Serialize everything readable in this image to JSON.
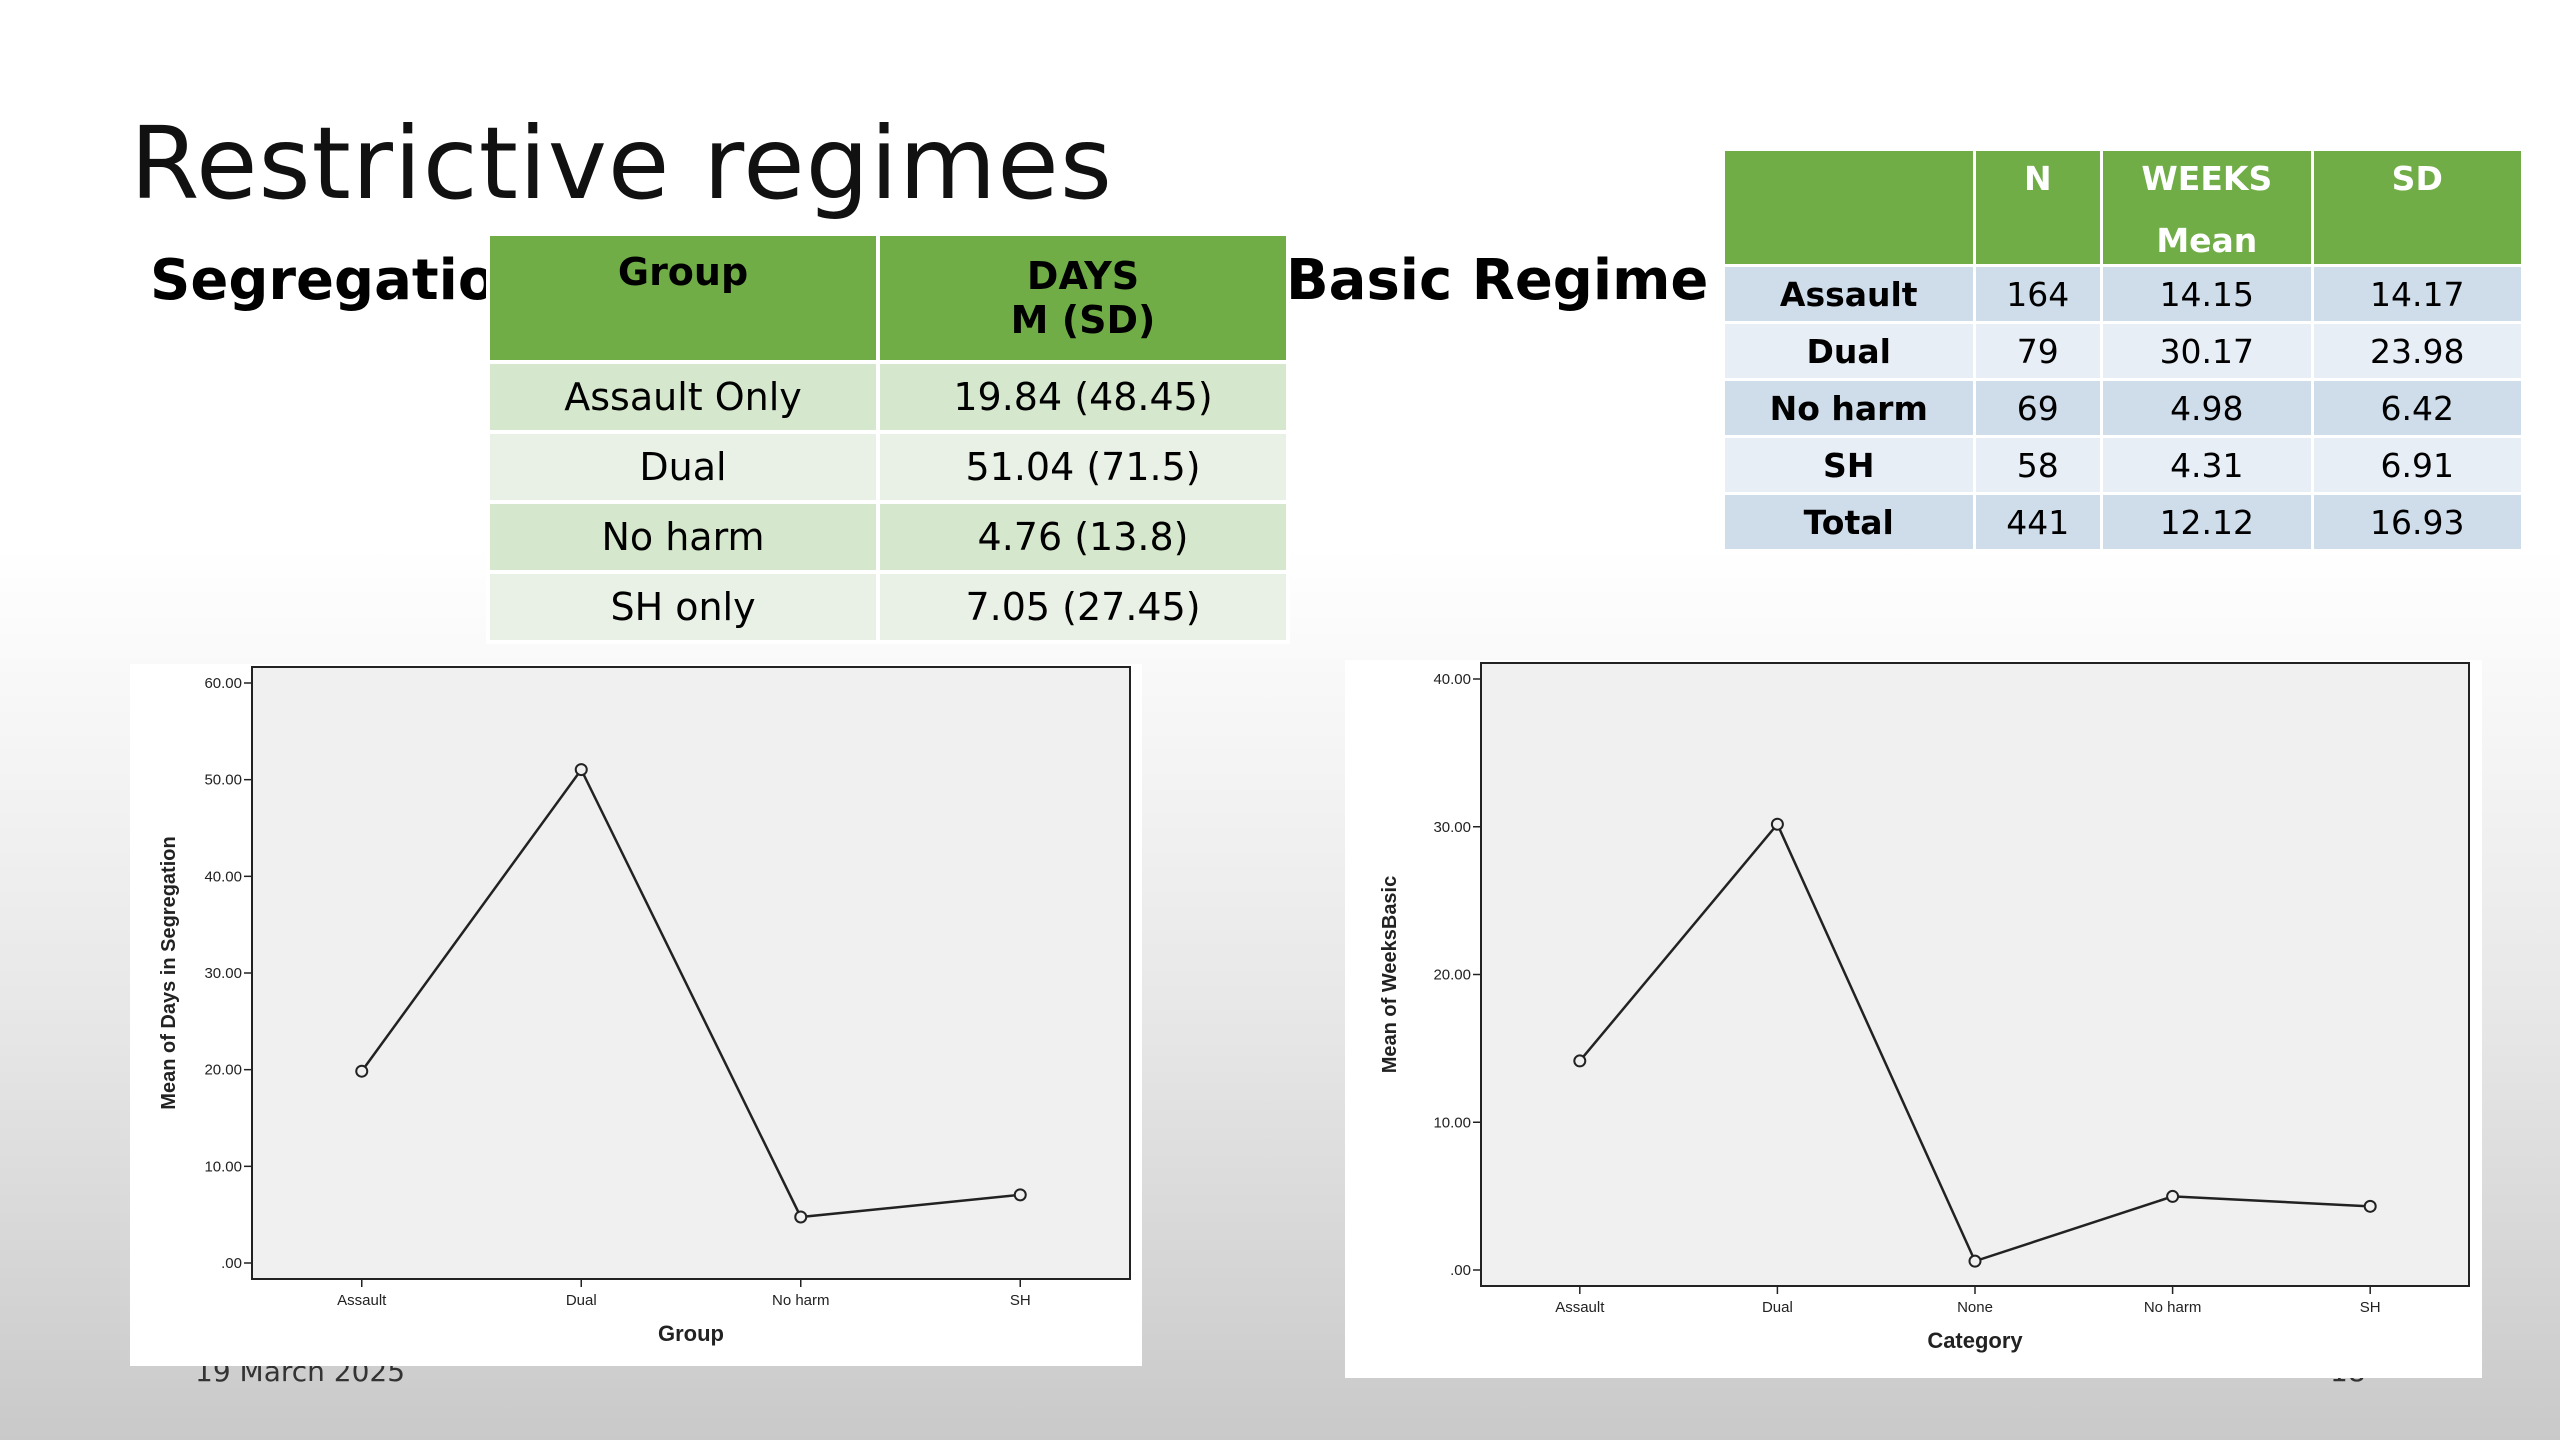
{
  "slide": {
    "title": "Restrictive regimes",
    "segregation_label": "Segregation",
    "basic_label": "Basic Regime",
    "footer_date": "19 March 2025",
    "footer_page": "18"
  },
  "segregation_table": {
    "headers": [
      "Group",
      "DAYS",
      "M (SD)"
    ],
    "rows": [
      {
        "group": "Assault Only",
        "value": "19.84 (48.45)"
      },
      {
        "group": "Dual",
        "value": "51.04 (71.5)"
      },
      {
        "group": "No harm",
        "value": "4.76 (13.8)"
      },
      {
        "group": "SH only",
        "value": "7.05 (27.45)"
      }
    ]
  },
  "basic_table": {
    "headers": {
      "n": "N",
      "weeks": "WEEKS",
      "mean": "Mean",
      "sd": "SD"
    },
    "rows": [
      {
        "category": "Assault",
        "n": "164",
        "mean": "14.15",
        "sd": "14.17"
      },
      {
        "category": "Dual",
        "n": "79",
        "mean": "30.17",
        "sd": "23.98"
      },
      {
        "category": "No harm",
        "n": "69",
        "mean": "4.98",
        "sd": "6.42"
      },
      {
        "category": "SH",
        "n": "58",
        "mean": "4.31",
        "sd": "6.91"
      },
      {
        "category": "Total",
        "n": "441",
        "mean": "12.12",
        "sd": "16.93"
      }
    ]
  },
  "colors": {
    "table_header_green": "#70ad47",
    "green_row_dark": "#d5e8cd",
    "green_row_light": "#e9f1e6",
    "blue_row_dark": "#cfdcea",
    "blue_row_light": "#e8eef6",
    "plot_bg": "#f0f0f0"
  },
  "chart_data": [
    {
      "type": "line",
      "categories": [
        "Assault",
        "Dual",
        "No harm",
        "SH"
      ],
      "values": [
        19.84,
        51.04,
        4.76,
        7.05
      ],
      "xlabel": "Group",
      "ylabel": "Mean of Days in Segregation",
      "yticks": [
        ".00",
        "10.00",
        "20.00",
        "30.00",
        "40.00",
        "50.00",
        "60.00"
      ],
      "ylim": [
        0,
        60
      ],
      "grid": false,
      "markers": "open-circle"
    },
    {
      "type": "line",
      "categories": [
        "Assault",
        "Dual",
        "None",
        "No harm",
        "SH"
      ],
      "values": [
        14.15,
        30.17,
        0.6,
        4.98,
        4.31
      ],
      "xlabel": "Category",
      "ylabel": "Mean of WeeksBasic",
      "yticks": [
        ".00",
        "10.00",
        "20.00",
        "30.00",
        "40.00"
      ],
      "ylim": [
        0,
        40
      ],
      "grid": false,
      "markers": "open-circle"
    }
  ]
}
